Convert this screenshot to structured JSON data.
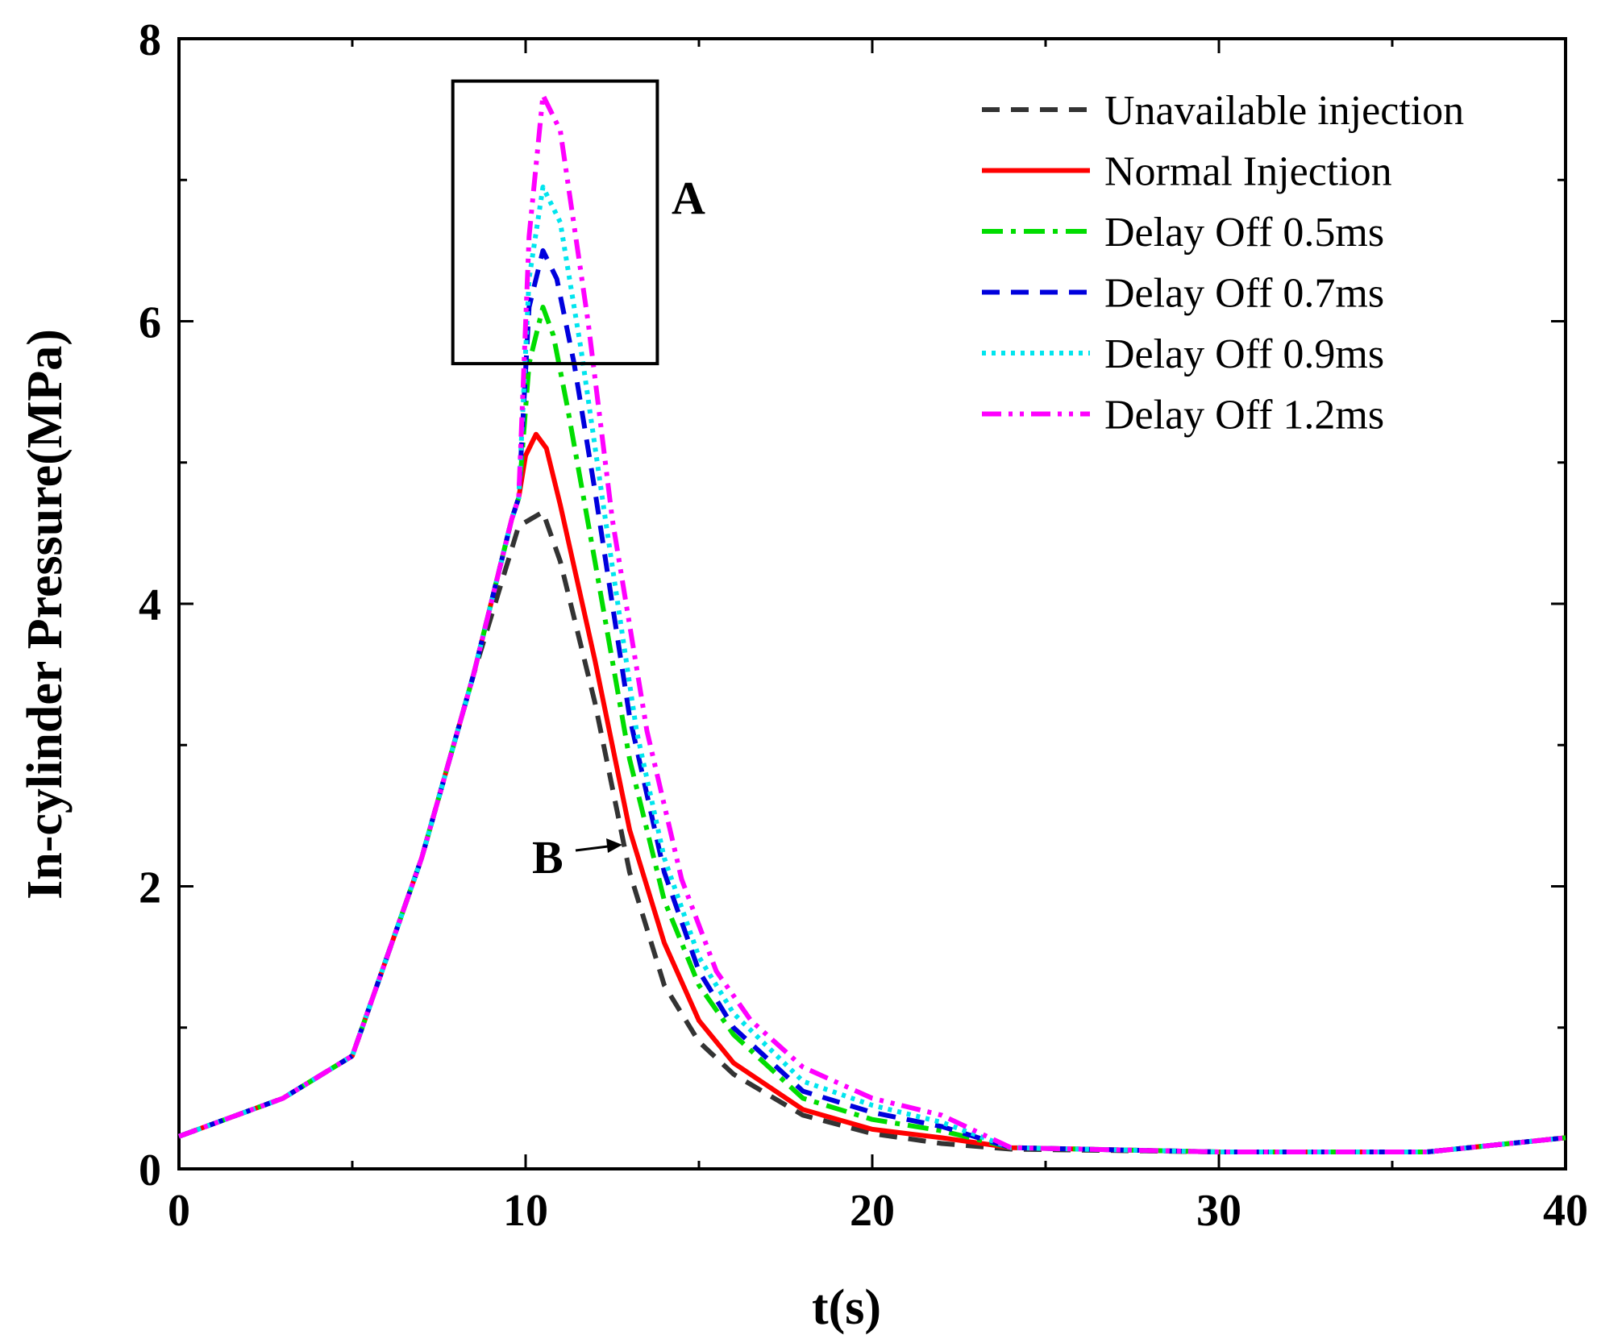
{
  "chart_data": {
    "type": "line",
    "title": "",
    "xlabel": "t(s)",
    "ylabel": "In-cylinder Pressure(MPa)",
    "xlim": [
      0,
      40
    ],
    "ylim": [
      0,
      8
    ],
    "xticks": [
      "0",
      "10",
      "20",
      "30",
      "40"
    ],
    "yticks": [
      "0",
      "2",
      "4",
      "6",
      "8"
    ],
    "grid": false,
    "legend_position": "top-right",
    "series": [
      {
        "name": "Unavailable injection",
        "color": "#333333",
        "style": "dash",
        "x": [
          0,
          3,
          5,
          7,
          8.5,
          9.8,
          10.5,
          11,
          12,
          13,
          14,
          15,
          16,
          18,
          20,
          22,
          24,
          30,
          36,
          40
        ],
        "y": [
          0.23,
          0.5,
          0.8,
          2.2,
          3.5,
          4.55,
          4.65,
          4.3,
          3.3,
          2.1,
          1.3,
          0.9,
          0.67,
          0.38,
          0.25,
          0.18,
          0.14,
          0.12,
          0.12,
          0.22
        ]
      },
      {
        "name": "Normal Injection",
        "color": "#ff0000",
        "style": "solid",
        "x": [
          0,
          3,
          5,
          7,
          8.5,
          9.6,
          9.8,
          10,
          10.3,
          10.6,
          11,
          12,
          13,
          14,
          15,
          16,
          18,
          20,
          22,
          24,
          30,
          36,
          40
        ],
        "y": [
          0.23,
          0.5,
          0.8,
          2.2,
          3.5,
          4.6,
          4.75,
          5.05,
          5.2,
          5.1,
          4.7,
          3.6,
          2.4,
          1.6,
          1.05,
          0.75,
          0.42,
          0.28,
          0.22,
          0.15,
          0.12,
          0.12,
          0.22
        ]
      },
      {
        "name": "Delay Off 0.5ms",
        "color": "#00dd00",
        "style": "dashdot",
        "x": [
          0,
          3,
          5,
          7,
          8.5,
          9.6,
          9.8,
          10.1,
          10.5,
          10.8,
          11.2,
          12,
          13,
          14,
          15,
          16,
          18,
          20,
          22,
          24,
          30,
          36,
          40
        ],
        "y": [
          0.23,
          0.5,
          0.8,
          2.2,
          3.5,
          4.6,
          4.75,
          5.7,
          6.1,
          5.9,
          5.4,
          4.3,
          2.9,
          1.9,
          1.3,
          0.95,
          0.5,
          0.35,
          0.27,
          0.15,
          0.12,
          0.12,
          0.22
        ]
      },
      {
        "name": "Delay Off 0.7ms",
        "color": "#0000dd",
        "style": "dash",
        "x": [
          0,
          3,
          5,
          7,
          8.5,
          9.6,
          9.8,
          10.1,
          10.5,
          10.9,
          11.4,
          12,
          13,
          14,
          15,
          16,
          18,
          20,
          22,
          24,
          30,
          36,
          40
        ],
        "y": [
          0.23,
          0.5,
          0.8,
          2.2,
          3.5,
          4.6,
          4.75,
          6.1,
          6.5,
          6.3,
          5.7,
          4.8,
          3.2,
          2.1,
          1.4,
          1.0,
          0.55,
          0.4,
          0.3,
          0.15,
          0.12,
          0.12,
          0.22
        ]
      },
      {
        "name": "Delay Off 0.9ms",
        "color": "#00e5ee",
        "style": "dot",
        "x": [
          0,
          3,
          5,
          7,
          8.5,
          9.6,
          9.8,
          10.1,
          10.5,
          11,
          11.6,
          12.3,
          13.2,
          14,
          15,
          16,
          18,
          20,
          22,
          24,
          30,
          36,
          40
        ],
        "y": [
          0.23,
          0.5,
          0.8,
          2.2,
          3.5,
          4.6,
          4.75,
          6.3,
          6.95,
          6.7,
          5.8,
          4.6,
          3.1,
          2.2,
          1.5,
          1.1,
          0.62,
          0.45,
          0.33,
          0.15,
          0.12,
          0.12,
          0.22
        ]
      },
      {
        "name": "Delay Off 1.2ms",
        "color": "#ff00ff",
        "style": "dashdotdot",
        "x": [
          0,
          3,
          5,
          7,
          8.5,
          9.6,
          9.8,
          10.1,
          10.5,
          11,
          11.8,
          12.5,
          13.5,
          14.5,
          15.5,
          16.5,
          18,
          20,
          22,
          24,
          30,
          36,
          40
        ],
        "y": [
          0.23,
          0.5,
          0.8,
          2.2,
          3.5,
          4.6,
          4.75,
          6.6,
          7.6,
          7.35,
          6.0,
          4.6,
          3.1,
          2.05,
          1.4,
          1.05,
          0.72,
          0.5,
          0.38,
          0.15,
          0.12,
          0.12,
          0.22
        ]
      }
    ],
    "annotations": [
      {
        "text": "A",
        "target": "peak region box"
      },
      {
        "text": "B",
        "target": "unavailable injection curve"
      }
    ],
    "annotation_box": {
      "x_range": [
        7.9,
        13.8
      ],
      "y_range": [
        5.7,
        7.7
      ]
    }
  }
}
